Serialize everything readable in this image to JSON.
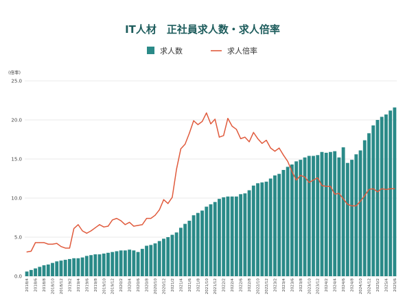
{
  "chart_data": {
    "type": "bar",
    "title": "IT人材　正社員求人数・求人倍率",
    "ylabel": "(倍率)",
    "ylim": [
      0,
      25
    ],
    "yticks": [
      "0.0",
      "5.0",
      "10.0",
      "15.0",
      "20.0",
      "25.0"
    ],
    "grid": true,
    "legend_position": "top",
    "x": [
      "2018/4",
      "2018/5",
      "2018/6",
      "2018/7",
      "2018/8",
      "2018/9",
      "2018/10",
      "2018/11",
      "2018/12",
      "2019/1",
      "2019/2",
      "2019/3",
      "2019/4",
      "2019/5",
      "2019/6",
      "2019/7",
      "2019/8",
      "2019/9",
      "2019/10",
      "2019/11",
      "2019/12",
      "2020/1",
      "2020/2",
      "2020/3",
      "2020/4",
      "2020/5",
      "2020/6",
      "2020/7",
      "2020/8",
      "2020/9",
      "2020/10",
      "2020/11",
      "2020/12",
      "2021/1",
      "2021/2",
      "2021/3",
      "2021/4",
      "2021/5",
      "2021/6",
      "2021/7",
      "2021/8",
      "2021/9",
      "2021/10",
      "2021/11",
      "2021/12",
      "2022/1",
      "2022/2",
      "2022/3",
      "2022/4",
      "2022/5",
      "2022/6",
      "2022/7",
      "2022/8",
      "2022/9",
      "2022/10",
      "2022/11",
      "2022/12",
      "2023/1",
      "2023/2",
      "2023/3",
      "2023/4",
      "2023/5",
      "2023/6",
      "2023/7",
      "2023/8",
      "2023/9",
      "2023/10",
      "2023/11",
      "2023/12",
      "2024/1",
      "2024/2",
      "2024/3",
      "2024/4",
      "2024/5",
      "2024/6",
      "2024/7",
      "2024/8",
      "2024/9",
      "2024/10",
      "2024/11",
      "2024/12",
      "2025/1",
      "2025/2",
      "2025/3",
      "2025/4",
      "2025/5",
      "2025/6"
    ],
    "xtick_labels": [
      "2018/4",
      "2018/6",
      "2018/8",
      "2018/10",
      "2018/12",
      "2019/2",
      "2019/4",
      "2019/6",
      "2019/8",
      "2019/10",
      "2019/12",
      "2020/2",
      "2020/4",
      "2020/6",
      "2020/8",
      "2020/10",
      "2020/12",
      "2021/2",
      "2021/4",
      "2021/6",
      "2021/8",
      "2021/10",
      "2021/12",
      "2022/2",
      "2022/4",
      "2022/6",
      "2022/8",
      "2022/10",
      "2022/12",
      "2023/2",
      "2023/4",
      "2023/6",
      "2023/8",
      "2023/10",
      "2023/12",
      "2024/2",
      "2024/4",
      "2024/6",
      "2024/8",
      "2024/10",
      "2024/12",
      "2025/2",
      "2025/4",
      "2025/6"
    ],
    "series": [
      {
        "name": "求人数",
        "type": "bar",
        "color": "#2a8a88",
        "values": [
          0.6,
          0.8,
          1.0,
          1.2,
          1.4,
          1.5,
          1.7,
          1.9,
          2.0,
          2.1,
          2.2,
          2.3,
          2.3,
          2.4,
          2.6,
          2.7,
          2.8,
          2.8,
          2.9,
          3.0,
          3.1,
          3.2,
          3.3,
          3.3,
          3.4,
          3.3,
          3.1,
          3.5,
          3.9,
          4.0,
          4.2,
          4.5,
          4.8,
          5.0,
          5.3,
          5.6,
          6.2,
          6.7,
          7.1,
          7.8,
          8.1,
          8.4,
          8.9,
          9.2,
          9.5,
          9.9,
          10.1,
          10.2,
          10.2,
          10.2,
          10.5,
          10.6,
          11.0,
          11.6,
          11.9,
          12.0,
          12.1,
          12.5,
          12.9,
          13.1,
          13.6,
          14.0,
          14.3,
          14.7,
          14.9,
          15.2,
          15.4,
          15.4,
          15.5,
          15.9,
          15.8,
          15.9,
          16.0,
          15.2,
          16.5,
          14.5,
          14.9,
          15.6,
          16.1,
          17.4,
          18.3,
          19.3,
          20.0,
          20.4,
          20.7,
          21.2,
          21.6
        ]
      },
      {
        "name": "求人倍率",
        "type": "line",
        "color": "#e05a3c",
        "values": [
          3.1,
          3.2,
          4.3,
          4.3,
          4.3,
          4.1,
          4.1,
          4.2,
          3.8,
          3.6,
          3.6,
          6.1,
          6.6,
          5.8,
          5.5,
          5.8,
          6.2,
          6.6,
          6.3,
          6.4,
          7.2,
          7.4,
          7.1,
          6.6,
          6.9,
          6.4,
          6.5,
          6.6,
          7.4,
          7.4,
          7.8,
          8.5,
          9.8,
          9.3,
          10.1,
          13.7,
          16.3,
          16.9,
          18.3,
          19.9,
          19.4,
          19.8,
          20.9,
          19.5,
          20.1,
          17.8,
          18.0,
          20.2,
          19.2,
          18.8,
          17.6,
          17.8,
          17.2,
          18.4,
          17.6,
          17.0,
          17.4,
          16.4,
          16.0,
          16.4,
          15.5,
          14.7,
          13.4,
          12.3,
          12.9,
          12.7,
          12.0,
          12.3,
          12.6,
          11.6,
          11.5,
          11.5,
          10.5,
          10.6,
          9.9,
          9.2,
          9.0,
          9.0,
          9.6,
          10.3,
          11.1,
          11.2,
          10.8,
          11.2,
          11.1,
          11.2,
          11.2
        ]
      }
    ]
  }
}
